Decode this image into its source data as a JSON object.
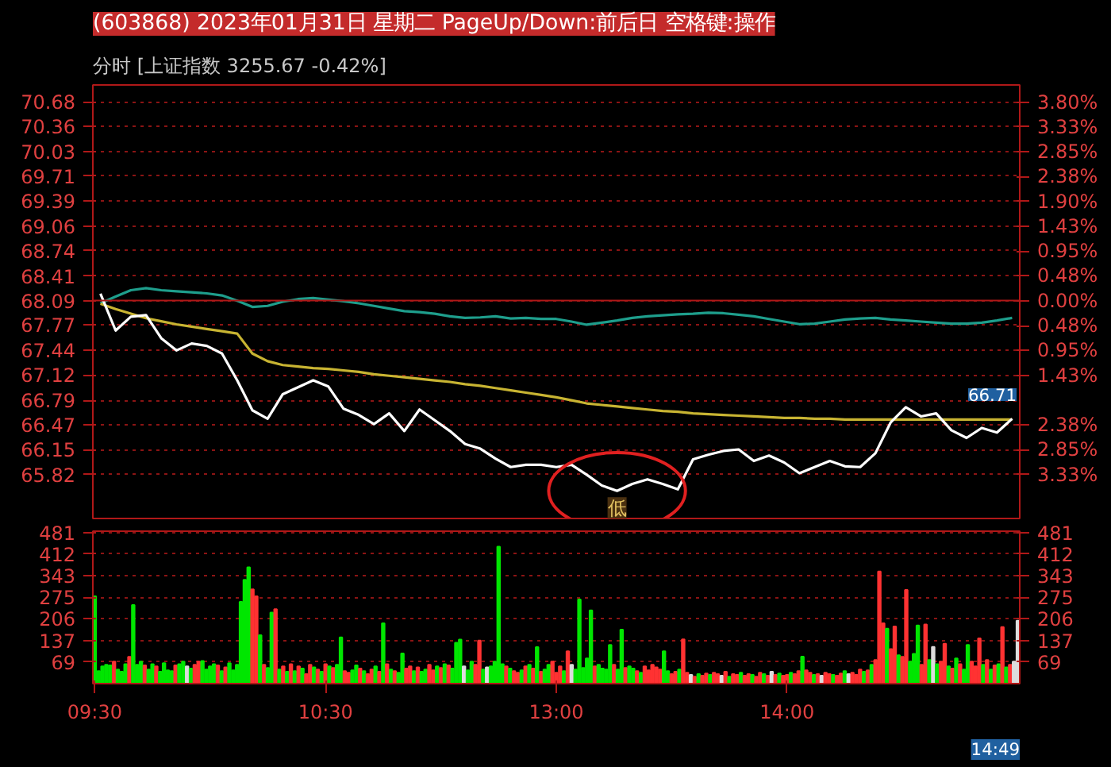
{
  "chart_data": [
    {
      "type": "line",
      "title": "(603868) 2023年01月31日 星期二 PageUp/Down:前后日 空格键:操作",
      "subtitle": "分时 [上证指数 3255.67 -0.42%]",
      "categories": [
        null,
        null,
        null,
        null,
        null,
        null,
        null,
        null,
        null,
        null,
        null,
        null,
        null,
        null,
        null,
        null,
        null,
        null,
        null,
        null,
        null,
        null,
        null,
        null,
        null,
        null,
        null,
        null,
        null,
        null,
        null,
        null,
        null,
        null,
        null,
        null,
        null,
        null,
        null,
        null,
        null,
        null,
        null,
        null,
        null,
        null,
        null,
        null,
        null,
        null,
        null,
        null,
        null,
        null,
        null,
        null,
        null,
        null,
        null,
        null,
        null
      ],
      "ylim": [
        65.25,
        70.9
      ],
      "yticks": [
        70.68,
        70.36,
        70.03,
        69.71,
        69.39,
        69.06,
        68.74,
        68.41,
        68.09,
        67.77,
        67.44,
        67.12,
        66.79,
        66.47,
        66.15,
        65.82
      ],
      "y2lim": [
        -4.17,
        4.13
      ],
      "y2ticks": [
        {
          "value": 3.8,
          "label": "3.80%"
        },
        {
          "value": 3.33,
          "label": "3.33%"
        },
        {
          "value": 2.85,
          "label": "2.85%"
        },
        {
          "value": 2.38,
          "label": "2.38%"
        },
        {
          "value": 1.9,
          "label": "1.90%"
        },
        {
          "value": 1.43,
          "label": "1.43%"
        },
        {
          "value": 0.95,
          "label": "0.95%"
        },
        {
          "value": 0.48,
          "label": "0.48%"
        },
        {
          "value": 0,
          "label": "0.00%"
        },
        {
          "value": -0.48,
          "label": "0.48%"
        },
        {
          "value": -0.95,
          "label": "0.95%"
        },
        {
          "value": -1.43,
          "label": "1.43%"
        },
        {
          "value": -2.38,
          "label": "2.38%"
        },
        {
          "value": -2.85,
          "label": "2.85%"
        },
        {
          "value": -3.33,
          "label": "3.33%"
        }
      ],
      "grid": "y",
      "marker": "none",
      "line_style": "solid",
      "ref_lines": [
        {
          "axis": "y",
          "value": 68.09,
          "color": "#b01818"
        }
      ],
      "annotations": [
        {
          "text": "低",
          "y": 65.61
        },
        "66.71"
      ],
      "series": [
        {
          "color": "#1e9e8c",
          "axis": "y2",
          "values": [
            -0.05,
            0.08,
            0.2,
            0.24,
            0.2,
            0.18,
            0.16,
            0.14,
            0.1,
            0.0,
            -0.12,
            -0.1,
            -0.02,
            0.03,
            0.05,
            0.02,
            -0.01,
            -0.05,
            -0.1,
            -0.15,
            -0.2,
            -0.22,
            -0.25,
            -0.3,
            -0.33,
            -0.32,
            -0.3,
            -0.34,
            -0.33,
            -0.35,
            -0.35,
            -0.4,
            -0.46,
            -0.42,
            -0.38,
            -0.33,
            -0.3,
            -0.28,
            -0.26,
            -0.25,
            -0.23,
            -0.24,
            -0.27,
            -0.3,
            -0.35,
            -0.4,
            -0.45,
            -0.44,
            -0.4,
            -0.36,
            -0.34,
            -0.33,
            -0.36,
            -0.38,
            -0.4,
            -0.42,
            -0.44,
            -0.44,
            -0.42,
            -0.38,
            -0.33
          ]
        },
        {
          "color": "#c8b432",
          "values": [
            68.05,
            67.98,
            67.92,
            67.86,
            67.82,
            67.78,
            67.75,
            67.72,
            67.69,
            67.66,
            67.4,
            67.3,
            67.25,
            67.23,
            67.21,
            67.2,
            67.18,
            67.16,
            67.13,
            67.11,
            67.09,
            67.07,
            67.05,
            67.03,
            67.0,
            66.98,
            66.95,
            66.92,
            66.89,
            66.86,
            66.83,
            66.79,
            66.75,
            66.73,
            66.71,
            66.69,
            66.67,
            66.65,
            66.64,
            66.62,
            66.61,
            66.6,
            66.59,
            66.58,
            66.57,
            66.56,
            66.56,
            66.55,
            66.55,
            66.54,
            66.54,
            66.54,
            66.54,
            66.54,
            66.54,
            66.54,
            66.54,
            66.54,
            66.54,
            66.54,
            66.54
          ]
        },
        {
          "color": "#ffffff",
          "values": [
            68.18,
            67.7,
            67.88,
            67.9,
            67.6,
            67.44,
            67.53,
            67.5,
            67.4,
            67.05,
            66.66,
            66.55,
            66.87,
            66.96,
            67.05,
            66.97,
            66.68,
            66.6,
            66.48,
            66.62,
            66.39,
            66.67,
            66.53,
            66.39,
            66.22,
            66.16,
            66.03,
            65.92,
            65.95,
            65.95,
            65.92,
            65.95,
            65.82,
            65.68,
            65.61,
            65.7,
            65.76,
            65.7,
            65.63,
            66.02,
            66.08,
            66.13,
            66.15,
            66.0,
            66.07,
            65.98,
            65.84,
            65.92,
            66.0,
            65.93,
            65.92,
            66.1,
            66.5,
            66.7,
            66.58,
            66.62,
            66.4,
            66.3,
            66.43,
            66.37,
            66.55
          ]
        }
      ]
    },
    {
      "type": "bar",
      "categories": [
        "09:30",
        null,
        null,
        null,
        null,
        null,
        null,
        null,
        null,
        null,
        null,
        null,
        null,
        null,
        null,
        null,
        null,
        null,
        null,
        null,
        null,
        null,
        null,
        null,
        null,
        null,
        null,
        null,
        null,
        null,
        null,
        null,
        null,
        null,
        null,
        null,
        null,
        null,
        null,
        null,
        null,
        null,
        null,
        null,
        null,
        null,
        null,
        null,
        null,
        null,
        null,
        null,
        null,
        null,
        null,
        null,
        null,
        null,
        null,
        null,
        "10:30",
        null,
        null,
        null,
        null,
        null,
        null,
        null,
        null,
        null,
        null,
        null,
        null,
        null,
        null,
        null,
        null,
        null,
        null,
        null,
        null,
        null,
        null,
        null,
        null,
        null,
        null,
        null,
        null,
        null,
        null,
        null,
        null,
        null,
        null,
        null,
        null,
        null,
        null,
        null,
        null,
        null,
        null,
        null,
        null,
        null,
        null,
        null,
        null,
        null,
        null,
        null,
        null,
        null,
        null,
        null,
        null,
        null,
        null,
        null,
        "13:00",
        null,
        null,
        null,
        null,
        null,
        null,
        null,
        null,
        null,
        null,
        null,
        null,
        null,
        null,
        null,
        null,
        null,
        null,
        null,
        null,
        null,
        null,
        null,
        null,
        null,
        null,
        null,
        null,
        null,
        null,
        null,
        null,
        null,
        null,
        null,
        null,
        null,
        null,
        null,
        null,
        null,
        null,
        null,
        null,
        null,
        null,
        null,
        null,
        null,
        null,
        null,
        null,
        null,
        null,
        null,
        null,
        null,
        null,
        null,
        "14:00",
        null,
        null,
        null,
        null,
        null,
        null,
        null,
        null,
        null,
        null,
        null,
        null,
        null,
        null,
        null,
        null,
        null,
        null,
        null,
        null,
        null,
        null,
        null,
        null,
        null,
        null,
        null,
        null,
        null,
        null,
        null,
        null,
        null,
        null,
        null,
        null,
        null,
        null,
        null,
        null,
        null,
        null,
        null,
        null,
        null,
        null,
        null,
        null,
        null,
        null,
        null,
        null,
        null,
        null,
        null,
        null,
        null,
        null,
        null,
        null
      ],
      "ylim": [
        0,
        485
      ],
      "yticks": [
        69,
        137,
        206,
        275,
        343,
        412,
        481
      ],
      "y2lim": [
        0,
        485
      ],
      "y2ticks": [
        69,
        137,
        206,
        275,
        343,
        412,
        481
      ],
      "grid": "y",
      "annotations": [
        "14:49"
      ],
      "values": [
        278,
        40,
        55,
        60,
        58,
        70,
        45,
        38,
        62,
        85,
        250,
        60,
        70,
        58,
        45,
        62,
        55,
        38,
        65,
        42,
        40,
        58,
        62,
        70,
        55,
        48,
        60,
        70,
        72,
        45,
        55,
        62,
        58,
        40,
        52,
        65,
        42,
        60,
        260,
        330,
        370,
        300,
        278,
        154,
        60,
        50,
        226,
        237,
        45,
        55,
        38,
        62,
        40,
        55,
        48,
        30,
        60,
        52,
        45,
        38,
        62,
        55,
        50,
        60,
        147,
        40,
        35,
        42,
        58,
        48,
        40,
        30,
        45,
        55,
        38,
        192,
        62,
        45,
        40,
        35,
        96,
        48,
        55,
        40,
        52,
        38,
        45,
        60,
        42,
        55,
        50,
        62,
        58,
        48,
        130,
        140,
        55,
        42,
        70,
        60,
        137,
        45,
        52,
        55,
        70,
        436,
        62,
        55,
        48,
        40,
        35,
        42,
        55,
        60,
        48,
        116,
        38,
        45,
        60,
        70,
        35,
        55,
        40,
        103,
        60,
        45,
        268,
        50,
        80,
        233,
        55,
        60,
        48,
        45,
        123,
        60,
        45,
        172,
        50,
        55,
        48,
        40,
        35,
        55,
        42,
        60,
        52,
        45,
        103,
        40,
        30,
        38,
        45,
        141,
        35,
        28,
        22,
        30,
        25,
        32,
        28,
        35,
        30,
        25,
        38,
        22,
        30,
        28,
        35,
        25,
        30,
        28,
        22,
        35,
        30,
        25,
        38,
        28,
        32,
        25,
        28,
        35,
        30,
        40,
        86,
        42,
        35,
        28,
        30,
        25,
        35,
        30,
        28,
        25,
        32,
        40,
        30,
        35,
        28,
        45,
        38,
        42,
        60,
        75,
        357,
        192,
        175,
        110,
        182,
        90,
        85,
        298,
        70,
        95,
        185,
        60,
        188,
        75,
        117,
        62,
        70,
        127,
        55,
        48,
        80,
        62,
        45,
        123,
        70,
        55,
        144,
        60,
        75,
        45,
        58,
        62,
        180,
        52,
        60,
        70,
        200
      ],
      "colors": [
        "#00e600",
        "#00e600",
        "#00e600",
        "#00e600",
        "#00e600",
        "#ff3232",
        "#00e600",
        "#00e600",
        "#00e600",
        "#ff3232",
        "#00e600",
        "#00e600",
        "#00e600",
        "#ff3232",
        "#00e600",
        "#00e600",
        "#ff3232",
        "#00e600",
        "#00e600",
        "#00e600",
        "#00e600",
        "#ff3232",
        "#00e600",
        "#00e600",
        "#dcdcdc",
        "#00e600",
        "#ff3232",
        "#ff3232",
        "#00e600",
        "#00e600",
        "#00e600",
        "#00e600",
        "#ff3232",
        "#00e600",
        "#ff3232",
        "#00e600",
        "#00e600",
        "#00e600",
        "#00e600",
        "#00e600",
        "#00e600",
        "#ff3232",
        "#ff3232",
        "#00e600",
        "#ff3232",
        "#00e600",
        "#00e600",
        "#ff3232",
        "#00e600",
        "#ff3232",
        "#00e600",
        "#ff3232",
        "#00e600",
        "#ff3232",
        "#00e600",
        "#ff3232",
        "#ff3232",
        "#00e600",
        "#ff3232",
        "#00e600",
        "#ff3232",
        "#00e600",
        "#ff3232",
        "#00e600",
        "#00e600",
        "#ff3232",
        "#ff3232",
        "#00e600",
        "#00e600",
        "#ff3232",
        "#00e600",
        "#ff3232",
        "#ff3232",
        "#00e600",
        "#ff3232",
        "#00e600",
        "#ff3232",
        "#00e600",
        "#ff3232",
        "#00e600",
        "#00e600",
        "#ff3232",
        "#ff3232",
        "#00e600",
        "#ff3232",
        "#00e600",
        "#00e600",
        "#ff3232",
        "#ff3232",
        "#00e600",
        "#ff3232",
        "#00e600",
        "#ff3232",
        "#00e600",
        "#00e600",
        "#00e600",
        "#dcdcdc",
        "#00e600",
        "#00e600",
        "#ff3232",
        "#ff3232",
        "#00e600",
        "#dcdcdc",
        "#00e600",
        "#00e600",
        "#00e600",
        "#00e600",
        "#ff3232",
        "#00e600",
        "#ff3232",
        "#ff3232",
        "#00e600",
        "#ff3232",
        "#00e600",
        "#ff3232",
        "#00e600",
        "#ff3232",
        "#00e600",
        "#00e600",
        "#ff3232",
        "#ff3232",
        "#ff3232",
        "#00e600",
        "#ff3232",
        "#dcdcdc",
        "#00e600",
        "#00e600",
        "#00e600",
        "#00e600",
        "#00e600",
        "#ff3232",
        "#00e600",
        "#00e600",
        "#00e600",
        "#00e600",
        "#ff3232",
        "#00e600",
        "#00e600",
        "#ff3232",
        "#00e600",
        "#00e600",
        "#ff3232",
        "#00e600",
        "#ff3232",
        "#ff3232",
        "#ff3232",
        "#ff3232",
        "#ff3232",
        "#00e600",
        "#00e600",
        "#ff3232",
        "#ff3232",
        "#00e600",
        "#ff3232",
        "#ff3232",
        "#dcdcdc",
        "#ff3232",
        "#00e600",
        "#ff3232",
        "#ff3232",
        "#00e600",
        "#ff3232",
        "#ff3232",
        "#dcdcdc",
        "#ff3232",
        "#00e600",
        "#ff3232",
        "#ff3232",
        "#00e600",
        "#ff3232",
        "#ff3232",
        "#00e600",
        "#ff3232",
        "#ff3232",
        "#00e600",
        "#ff3232",
        "#dcdcdc",
        "#ff3232",
        "#00e600",
        "#ff3232",
        "#ff3232",
        "#00e600",
        "#ff3232",
        "#ff3232",
        "#00e600",
        "#ff3232",
        "#ff3232",
        "#00e600",
        "#ff3232",
        "#dcdcdc",
        "#ff3232",
        "#ff3232",
        "#00e600",
        "#ff3232",
        "#ff3232",
        "#00e600",
        "#dcdcdc",
        "#ff3232",
        "#ff3232",
        "#ff3232",
        "#00e600",
        "#ff3232",
        "#00e600",
        "#ff3232",
        "#ff3232",
        "#ff3232",
        "#00e600",
        "#ff3232",
        "#ff3232",
        "#00e600",
        "#ff3232",
        "#ff3232",
        "#00e600",
        "#00e600",
        "#00e600",
        "#ff3232",
        "#ff3232",
        "#00e600",
        "#dcdcdc",
        "#00e600",
        "#ff3232",
        "#ff3232",
        "#00e600",
        "#ff3232",
        "#00e600",
        "#ff3232",
        "#00e600",
        "#00e600",
        "#ff3232",
        "#ff3232",
        "#ff3232",
        "#00e600",
        "#ff3232",
        "#00e600",
        "#ff3232",
        "#00e600",
        "#ff3232",
        "#00e600",
        "#ff3232",
        "#dcdcdc",
        "#dcdcdc"
      ]
    }
  ]
}
